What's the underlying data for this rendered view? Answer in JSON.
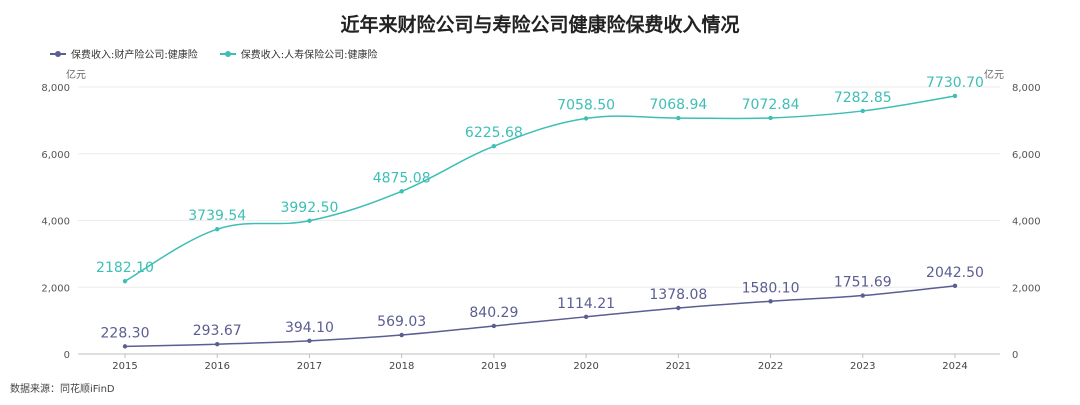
{
  "chart_data": {
    "type": "line",
    "title": "近年来财险公司与寿险公司健康险保费收入情况",
    "y_unit_left": "亿元",
    "y_unit_right": "亿元",
    "ylim": [
      0,
      8000
    ],
    "y_ticks": [
      0,
      2000,
      4000,
      6000,
      8000
    ],
    "y_tick_labels": [
      "0",
      "2,000",
      "4,000",
      "6,000",
      "8,000"
    ],
    "categories": [
      "2015",
      "2016",
      "2017",
      "2018",
      "2019",
      "2020",
      "2021",
      "2022",
      "2023",
      "2024"
    ],
    "series": [
      {
        "name": "保费收入:财产险公司:健康险",
        "color": "#5a5e91",
        "values": [
          228.3,
          293.67,
          394.1,
          569.03,
          840.29,
          1114.21,
          1378.08,
          1580.1,
          1751.69,
          2042.5
        ],
        "labels": [
          "228.30",
          "293.67",
          "394.10",
          "569.03",
          "840.29",
          "1114.21",
          "1378.08",
          "1580.10",
          "1751.69",
          "2042.50"
        ]
      },
      {
        "name": "保费收入:人寿保险公司:健康险",
        "color": "#3dbfb5",
        "values": [
          2182.1,
          3739.54,
          3992.5,
          4875.08,
          6225.68,
          7058.5,
          7068.94,
          7072.84,
          7282.85,
          7730.7
        ],
        "labels": [
          "2182.10",
          "3739.54",
          "3992.50",
          "4875.08",
          "6225.68",
          "7058.50",
          "7068.94",
          "7072.84",
          "7282.85",
          "7730.70"
        ]
      }
    ],
    "grid": true,
    "legend_position": "top-left",
    "source": "数据来源：同花顺iFinD"
  }
}
